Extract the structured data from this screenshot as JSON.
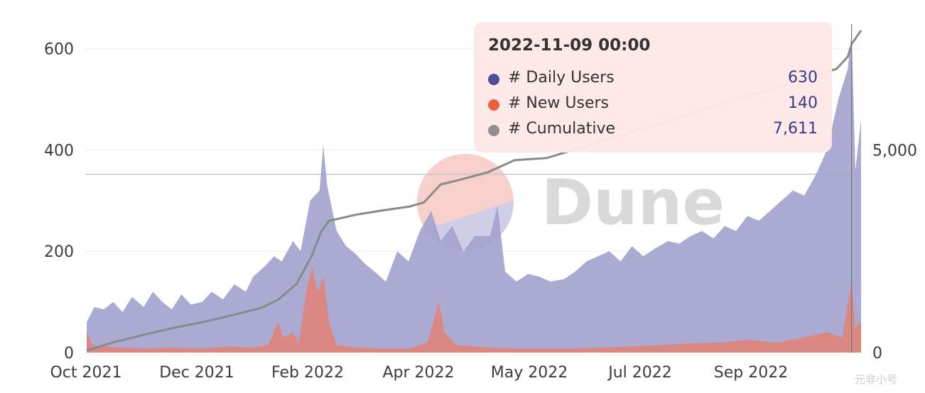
{
  "chart_data": {
    "type": "area",
    "x_tick_labels": [
      "Oct 2021",
      "Dec 2021",
      "Feb 2022",
      "Apr 2022",
      "May 2022",
      "Jul 2022",
      "Sep 2022"
    ],
    "y_left_ticks": [
      "0",
      "200",
      "400",
      "600"
    ],
    "y_right_ticks": [
      "0",
      "5,000"
    ],
    "ylim_left": [
      0,
      640
    ],
    "ylim_right": [
      0,
      8000
    ],
    "grid": true,
    "x_range": [
      "2021-10-01",
      "2022-11-14"
    ],
    "series": [
      {
        "name": "# Daily Users",
        "axis": "left",
        "kind": "area",
        "color": "#a3a3ce",
        "points": [
          [
            "2021-10-01",
            60
          ],
          [
            "2021-10-05",
            90
          ],
          [
            "2021-10-10",
            85
          ],
          [
            "2021-10-15",
            100
          ],
          [
            "2021-10-20",
            80
          ],
          [
            "2021-10-25",
            110
          ],
          [
            "2021-10-31",
            90
          ],
          [
            "2021-11-05",
            120
          ],
          [
            "2021-11-10",
            100
          ],
          [
            "2021-11-15",
            85
          ],
          [
            "2021-11-20",
            115
          ],
          [
            "2021-11-25",
            95
          ],
          [
            "2021-12-01",
            100
          ],
          [
            "2021-12-06",
            120
          ],
          [
            "2021-12-12",
            105
          ],
          [
            "2021-12-18",
            135
          ],
          [
            "2021-12-24",
            120
          ],
          [
            "2021-12-28",
            150
          ],
          [
            "2022-01-03",
            170
          ],
          [
            "2022-01-08",
            190
          ],
          [
            "2022-01-12",
            180
          ],
          [
            "2022-01-18",
            220
          ],
          [
            "2022-01-22",
            200
          ],
          [
            "2022-01-27",
            300
          ],
          [
            "2022-02-01",
            320
          ],
          [
            "2022-02-03",
            410
          ],
          [
            "2022-02-05",
            330
          ],
          [
            "2022-02-10",
            240
          ],
          [
            "2022-02-15",
            210
          ],
          [
            "2022-02-20",
            195
          ],
          [
            "2022-02-25",
            175
          ],
          [
            "2022-03-02",
            160
          ],
          [
            "2022-03-08",
            140
          ],
          [
            "2022-03-14",
            200
          ],
          [
            "2022-03-20",
            180
          ],
          [
            "2022-03-26",
            240
          ],
          [
            "2022-04-01",
            280
          ],
          [
            "2022-04-06",
            220
          ],
          [
            "2022-04-12",
            250
          ],
          [
            "2022-04-18",
            200
          ],
          [
            "2022-04-24",
            230
          ],
          [
            "2022-05-02",
            230
          ],
          [
            "2022-05-06",
            290
          ],
          [
            "2022-05-10",
            160
          ],
          [
            "2022-05-16",
            140
          ],
          [
            "2022-05-22",
            155
          ],
          [
            "2022-05-28",
            150
          ],
          [
            "2022-06-03",
            140
          ],
          [
            "2022-06-10",
            145
          ],
          [
            "2022-06-16",
            160
          ],
          [
            "2022-06-22",
            180
          ],
          [
            "2022-06-28",
            190
          ],
          [
            "2022-07-04",
            200
          ],
          [
            "2022-07-10",
            180
          ],
          [
            "2022-07-16",
            210
          ],
          [
            "2022-07-22",
            190
          ],
          [
            "2022-07-28",
            205
          ],
          [
            "2022-08-04",
            220
          ],
          [
            "2022-08-10",
            215
          ],
          [
            "2022-08-16",
            230
          ],
          [
            "2022-08-22",
            240
          ],
          [
            "2022-08-28",
            225
          ],
          [
            "2022-09-03",
            250
          ],
          [
            "2022-09-09",
            240
          ],
          [
            "2022-09-15",
            270
          ],
          [
            "2022-09-21",
            260
          ],
          [
            "2022-09-27",
            280
          ],
          [
            "2022-10-03",
            300
          ],
          [
            "2022-10-09",
            320
          ],
          [
            "2022-10-15",
            310
          ],
          [
            "2022-10-21",
            350
          ],
          [
            "2022-10-27",
            400
          ],
          [
            "2022-11-02",
            500
          ],
          [
            "2022-11-07",
            560
          ],
          [
            "2022-11-09",
            630
          ],
          [
            "2022-11-11",
            360
          ],
          [
            "2022-11-14",
            460
          ]
        ]
      },
      {
        "name": "# New Users",
        "axis": "left",
        "kind": "area",
        "color": "#e0857c",
        "points": [
          [
            "2021-10-01",
            40
          ],
          [
            "2021-10-04",
            15
          ],
          [
            "2021-10-10",
            12
          ],
          [
            "2021-10-20",
            10
          ],
          [
            "2021-11-01",
            8
          ],
          [
            "2021-11-15",
            10
          ],
          [
            "2021-12-01",
            8
          ],
          [
            "2021-12-15",
            12
          ],
          [
            "2021-12-28",
            10
          ],
          [
            "2022-01-05",
            15
          ],
          [
            "2022-01-10",
            60
          ],
          [
            "2022-01-13",
            30
          ],
          [
            "2022-01-18",
            40
          ],
          [
            "2022-01-21",
            20
          ],
          [
            "2022-01-25",
            120
          ],
          [
            "2022-01-28",
            170
          ],
          [
            "2022-01-31",
            120
          ],
          [
            "2022-02-03",
            150
          ],
          [
            "2022-02-06",
            60
          ],
          [
            "2022-02-10",
            15
          ],
          [
            "2022-02-20",
            10
          ],
          [
            "2022-03-05",
            8
          ],
          [
            "2022-03-20",
            8
          ],
          [
            "2022-03-30",
            20
          ],
          [
            "2022-04-02",
            60
          ],
          [
            "2022-04-05",
            100
          ],
          [
            "2022-04-08",
            40
          ],
          [
            "2022-04-14",
            15
          ],
          [
            "2022-05-01",
            10
          ],
          [
            "2022-05-15",
            8
          ],
          [
            "2022-06-01",
            8
          ],
          [
            "2022-06-15",
            8
          ],
          [
            "2022-07-01",
            10
          ],
          [
            "2022-07-15",
            12
          ],
          [
            "2022-08-01",
            15
          ],
          [
            "2022-08-15",
            18
          ],
          [
            "2022-09-01",
            20
          ],
          [
            "2022-09-15",
            25
          ],
          [
            "2022-10-01",
            20
          ],
          [
            "2022-10-15",
            30
          ],
          [
            "2022-10-27",
            40
          ],
          [
            "2022-11-04",
            30
          ],
          [
            "2022-11-09",
            140
          ],
          [
            "2022-11-11",
            50
          ],
          [
            "2022-11-14",
            60
          ]
        ]
      },
      {
        "name": "# Cumulative",
        "axis": "right",
        "kind": "line",
        "color": "#8a8a8a",
        "points": [
          [
            "2021-10-01",
            50
          ],
          [
            "2021-10-15",
            250
          ],
          [
            "2021-11-01",
            450
          ],
          [
            "2021-11-15",
            600
          ],
          [
            "2021-12-01",
            750
          ],
          [
            "2021-12-15",
            900
          ],
          [
            "2022-01-01",
            1100
          ],
          [
            "2022-01-10",
            1300
          ],
          [
            "2022-01-20",
            1700
          ],
          [
            "2022-01-28",
            2400
          ],
          [
            "2022-02-02",
            3000
          ],
          [
            "2022-02-06",
            3250
          ],
          [
            "2022-02-20",
            3400
          ],
          [
            "2022-03-05",
            3500
          ],
          [
            "2022-03-20",
            3600
          ],
          [
            "2022-03-28",
            3700
          ],
          [
            "2022-04-02",
            3950
          ],
          [
            "2022-04-06",
            4150
          ],
          [
            "2022-04-15",
            4250
          ],
          [
            "2022-05-01",
            4450
          ],
          [
            "2022-05-15",
            4750
          ],
          [
            "2022-06-01",
            4800
          ],
          [
            "2022-11-01",
            7000
          ],
          [
            "2022-11-07",
            7300
          ],
          [
            "2022-11-09",
            7611
          ],
          [
            "2022-11-14",
            7950
          ]
        ]
      }
    ],
    "reference_line": {
      "axis": "right",
      "value": 4400
    },
    "cursor_date": "2022-11-09"
  },
  "tooltip": {
    "title": "2022-11-09 00:00",
    "rows": [
      {
        "label": "# Daily Users",
        "value": "630",
        "color": "#4e4e9a"
      },
      {
        "label": "# New Users",
        "value": "140",
        "color": "#e8623f"
      },
      {
        "label": "# Cumulative",
        "value": "7,611",
        "color": "#8f8f8f"
      }
    ]
  },
  "logo": {
    "text": "Dune",
    "circle_top": "#f6c7c2",
    "circle_bottom": "#c7c6e2"
  },
  "footer_watermark": "元非小号"
}
